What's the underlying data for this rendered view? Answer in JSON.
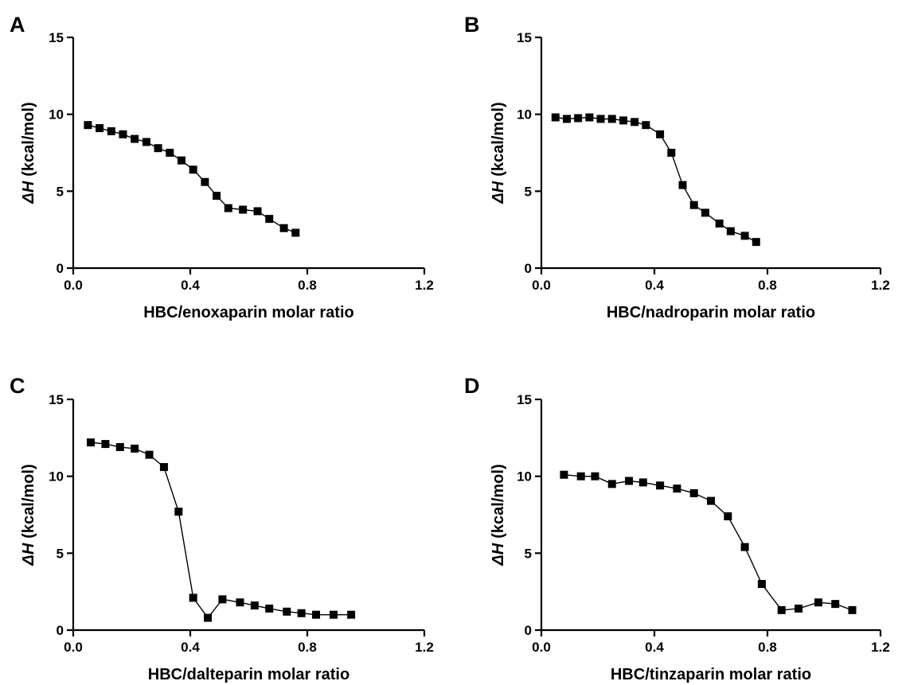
{
  "chart_data": [
    {
      "type": "line",
      "panel": "A",
      "xlabel": "HBC/enoxaparin molar ratio",
      "ylabel_symbol": "ΔH",
      "ylabel_unit": "(kcal/mol)",
      "xlim": [
        0,
        1.2
      ],
      "ylim": [
        0,
        15
      ],
      "xticks": [
        0.0,
        0.4,
        0.8,
        1.2
      ],
      "xtick_labels": [
        "0.0",
        "0.4",
        "0.8",
        "1.2"
      ],
      "yticks": [
        0,
        5,
        10,
        15
      ],
      "ytick_labels": [
        "0",
        "5",
        "10",
        "15"
      ],
      "grid": false,
      "marker": "square",
      "x": [
        0.05,
        0.09,
        0.13,
        0.17,
        0.21,
        0.25,
        0.29,
        0.33,
        0.37,
        0.41,
        0.45,
        0.49,
        0.53,
        0.58,
        0.63,
        0.67,
        0.72,
        0.76
      ],
      "y": [
        9.3,
        9.1,
        8.9,
        8.7,
        8.4,
        8.2,
        7.8,
        7.5,
        7.0,
        6.4,
        5.6,
        4.7,
        3.9,
        3.8,
        3.7,
        3.2,
        2.6,
        2.3
      ]
    },
    {
      "type": "line",
      "panel": "B",
      "xlabel": "HBC/nadroparin molar ratio",
      "ylabel_symbol": "ΔH",
      "ylabel_unit": "(kcal/mol)",
      "xlim": [
        0,
        1.2
      ],
      "ylim": [
        0,
        15
      ],
      "xticks": [
        0.0,
        0.4,
        0.8,
        1.2
      ],
      "xtick_labels": [
        "0.0",
        "0.4",
        "0.8",
        "1.2"
      ],
      "yticks": [
        0,
        5,
        10,
        15
      ],
      "ytick_labels": [
        "0",
        "5",
        "10",
        "15"
      ],
      "grid": false,
      "marker": "square",
      "x": [
        0.05,
        0.09,
        0.13,
        0.17,
        0.21,
        0.25,
        0.29,
        0.33,
        0.37,
        0.42,
        0.46,
        0.5,
        0.54,
        0.58,
        0.63,
        0.67,
        0.72,
        0.76
      ],
      "y": [
        9.8,
        9.7,
        9.75,
        9.8,
        9.7,
        9.7,
        9.6,
        9.5,
        9.3,
        8.7,
        7.5,
        5.4,
        4.1,
        3.6,
        2.9,
        2.4,
        2.1,
        1.7
      ]
    },
    {
      "type": "line",
      "panel": "C",
      "xlabel": "HBC/dalteparin molar ratio",
      "ylabel_symbol": "ΔH",
      "ylabel_unit": "(kcal/mol)",
      "xlim": [
        0,
        1.2
      ],
      "ylim": [
        0,
        15
      ],
      "xticks": [
        0.0,
        0.4,
        0.8,
        1.2
      ],
      "xtick_labels": [
        "0.0",
        "0.4",
        "0.8",
        "1.2"
      ],
      "yticks": [
        0,
        5,
        10,
        15
      ],
      "ytick_labels": [
        "0",
        "5",
        "10",
        "15"
      ],
      "grid": false,
      "marker": "square",
      "x": [
        0.06,
        0.11,
        0.16,
        0.21,
        0.26,
        0.31,
        0.36,
        0.41,
        0.46,
        0.51,
        0.57,
        0.62,
        0.67,
        0.73,
        0.78,
        0.83,
        0.89,
        0.95
      ],
      "y": [
        12.2,
        12.1,
        11.9,
        11.8,
        11.4,
        10.6,
        7.7,
        2.1,
        0.8,
        2.0,
        1.8,
        1.6,
        1.4,
        1.2,
        1.1,
        1.0,
        1.0,
        1.0
      ]
    },
    {
      "type": "line",
      "panel": "D",
      "xlabel": "HBC/tinzaparin molar ratio",
      "ylabel_symbol": "ΔH",
      "ylabel_unit": "(kcal/mol)",
      "xlim": [
        0,
        1.2
      ],
      "ylim": [
        0,
        15
      ],
      "xticks": [
        0.0,
        0.4,
        0.8,
        1.2
      ],
      "xtick_labels": [
        "0.0",
        "0.4",
        "0.8",
        "1.2"
      ],
      "yticks": [
        0,
        5,
        10,
        15
      ],
      "ytick_labels": [
        "0",
        "5",
        "10",
        "15"
      ],
      "grid": false,
      "marker": "square",
      "x": [
        0.08,
        0.14,
        0.19,
        0.25,
        0.31,
        0.36,
        0.42,
        0.48,
        0.54,
        0.6,
        0.66,
        0.72,
        0.78,
        0.85,
        0.91,
        0.98,
        1.04,
        1.1
      ],
      "y": [
        10.1,
        10.0,
        10.0,
        9.5,
        9.7,
        9.6,
        9.4,
        9.2,
        8.9,
        8.4,
        7.4,
        5.4,
        3.0,
        1.3,
        1.4,
        1.8,
        1.7,
        1.3
      ]
    }
  ]
}
